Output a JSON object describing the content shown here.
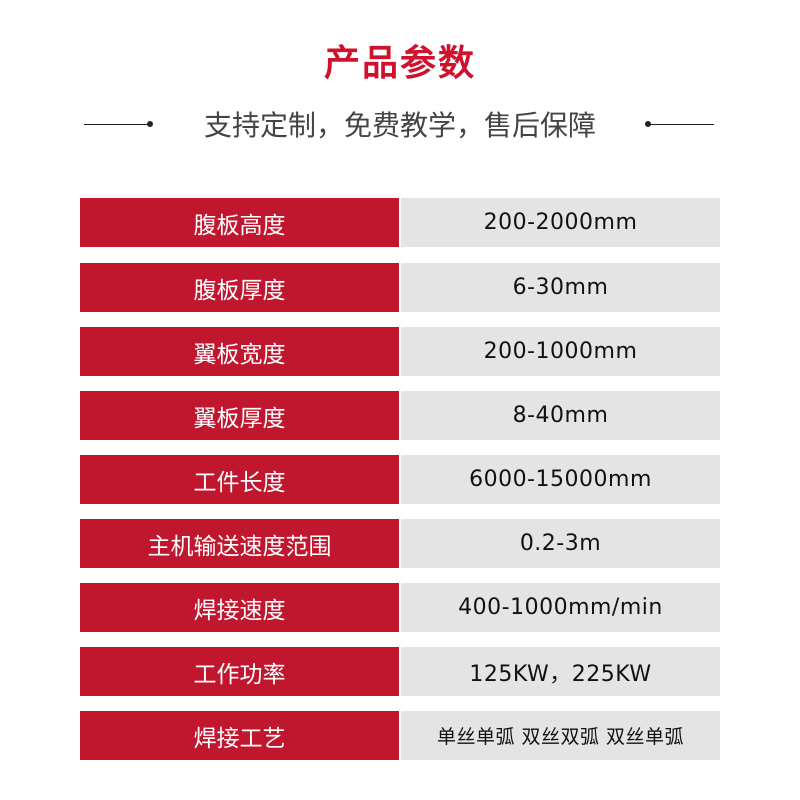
{
  "header": {
    "title": "产品参数",
    "subtitle": "支持定制，免费教学，售后保障"
  },
  "colors": {
    "accent": "#c0172f",
    "title": "#d0112b",
    "value_bg": "#e4e4e4"
  },
  "params": [
    {
      "label": "腹板高度",
      "value": "200-2000mm"
    },
    {
      "label": "腹板厚度",
      "value": "6-30mm"
    },
    {
      "label": "翼板宽度",
      "value": "200-1000mm"
    },
    {
      "label": "翼板厚度",
      "value": "8-40mm"
    },
    {
      "label": "工件长度",
      "value": "6000-15000mm"
    },
    {
      "label": "主机输送速度范围",
      "value": "0.2-3m"
    },
    {
      "label": "焊接速度",
      "value": "400-1000mm/min"
    },
    {
      "label": "工作功率",
      "value": "125KW，225KW"
    },
    {
      "label": "焊接工艺",
      "value": "单丝单弧 双丝双弧 双丝单弧"
    }
  ]
}
